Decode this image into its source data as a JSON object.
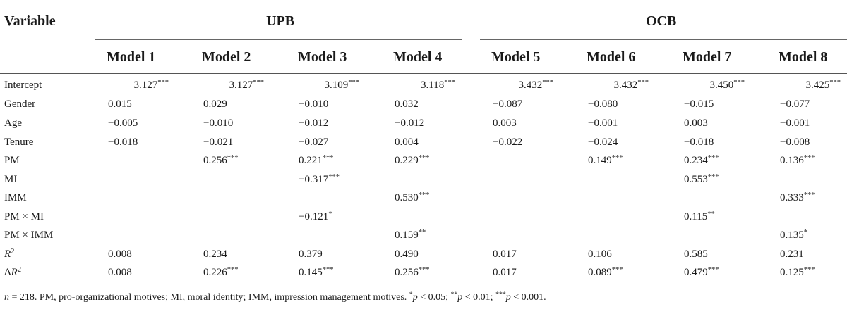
{
  "table": {
    "variable_header": "Variable",
    "groups": [
      {
        "label": "UPB"
      },
      {
        "label": "OCB"
      }
    ],
    "models": [
      "Model 1",
      "Model 2",
      "Model 3",
      "Model 4",
      "Model 5",
      "Model 6",
      "Model 7",
      "Model 8"
    ],
    "rows": [
      {
        "label": "Intercept",
        "cells": [
          "3.127***",
          "3.127***",
          "3.109***",
          "3.118***",
          "3.432***",
          "3.432***",
          "3.450***",
          "3.425***"
        ]
      },
      {
        "label": "Gender",
        "cells": [
          "0.015",
          "0.029",
          "−0.010",
          "0.032",
          "−0.087",
          "−0.080",
          "−0.015",
          "−0.077"
        ]
      },
      {
        "label": "Age",
        "cells": [
          "−0.005",
          "−0.010",
          "−0.012",
          "−0.012",
          "0.003",
          "−0.001",
          "0.003",
          "−0.001"
        ]
      },
      {
        "label": "Tenure",
        "cells": [
          "−0.018",
          "−0.021",
          "−0.027",
          "0.004",
          "−0.022",
          "−0.024",
          "−0.018",
          "−0.008"
        ]
      },
      {
        "label": "PM",
        "cells": [
          "",
          "0.256***",
          "0.221***",
          "0.229***",
          "",
          "0.149***",
          "0.234***",
          "0.136***"
        ]
      },
      {
        "label": "MI",
        "cells": [
          "",
          "",
          "−0.317***",
          "",
          "",
          "",
          "0.553***",
          ""
        ]
      },
      {
        "label": "IMM",
        "cells": [
          "",
          "",
          "",
          "0.530***",
          "",
          "",
          "",
          "0.333***"
        ]
      },
      {
        "label": "PM × MI",
        "cells": [
          "",
          "",
          "−0.121*",
          "",
          "",
          "",
          "0.115**",
          ""
        ]
      },
      {
        "label": "PM × IMM",
        "cells": [
          "",
          "",
          "",
          "0.159**",
          "",
          "",
          "",
          "0.135*"
        ]
      },
      {
        "label": "R2",
        "cells": [
          "0.008",
          "0.234",
          "0.379",
          "0.490",
          "0.017",
          "0.106",
          "0.585",
          "0.231"
        ]
      },
      {
        "label": "ΔR2",
        "cells": [
          "0.008",
          "0.226***",
          "0.145***",
          "0.256***",
          "0.017",
          "0.089***",
          "0.479***",
          "0.125***"
        ]
      }
    ],
    "footnote": "n = 218. PM, pro-organizational motives; MI, moral identity; IMM, impression management motives. *p < 0.05; **p < 0.01; ***p < 0.001."
  }
}
